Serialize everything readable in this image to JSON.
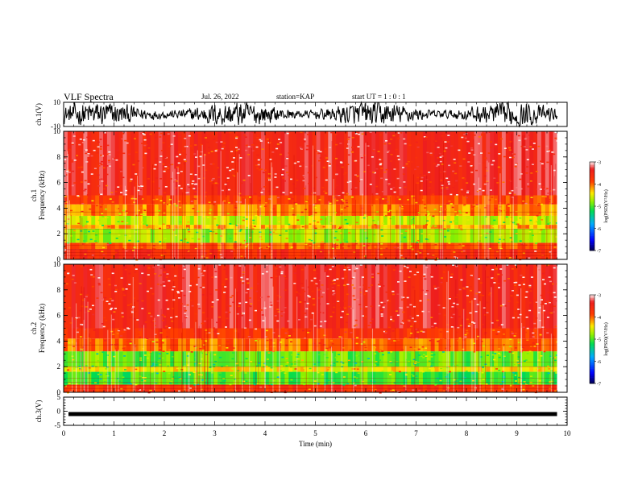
{
  "header": {
    "title": "VLF Spectra",
    "date": "Jul. 26, 2022",
    "station": "station=KAP",
    "start": "start  UT =   1 : 0  : 1"
  },
  "chart_data": [
    {
      "type": "line",
      "name": "ch1-waveform",
      "ylabel": "ch.1(V)",
      "ylim": [
        -10,
        10
      ],
      "yticks": [
        "10",
        "-10"
      ],
      "xlim": [
        0,
        10
      ],
      "description_series": "noisy waveform roughly -10..10 V over 0-9.8 min"
    },
    {
      "type": "heatmap",
      "name": "ch1-spectrogram",
      "ylabel": "ch.1\nFrequency (kHz)",
      "ylabel_line1": "ch.1",
      "ylabel_line2": "Frequency (kHz)",
      "ylim": [
        0,
        10
      ],
      "yticks": [
        "0",
        "2",
        "4",
        "6",
        "8",
        "10"
      ],
      "xlim": [
        0,
        10
      ],
      "data_end_min": 9.8,
      "colorbar": {
        "label": "log(PSD)(V²/Hz)",
        "ticks": [
          "-3",
          "-4",
          "-5",
          "-6",
          "-7"
        ],
        "range": [
          -7,
          -3
        ]
      },
      "bands": [
        {
          "from_khz": 0.0,
          "to_khz": 0.8,
          "level": -3.6
        },
        {
          "from_khz": 0.8,
          "to_khz": 1.3,
          "level": -3.9
        },
        {
          "from_khz": 1.3,
          "to_khz": 2.4,
          "level": -4.7
        },
        {
          "from_khz": 2.4,
          "to_khz": 2.7,
          "level": -4.2
        },
        {
          "from_khz": 2.7,
          "to_khz": 3.4,
          "level": -4.6
        },
        {
          "from_khz": 3.4,
          "to_khz": 4.3,
          "level": -4.1
        },
        {
          "from_khz": 4.3,
          "to_khz": 5.0,
          "level": -3.8
        },
        {
          "from_khz": 5.0,
          "to_khz": 10.0,
          "level": -3.4
        }
      ]
    },
    {
      "type": "heatmap",
      "name": "ch2-spectrogram",
      "ylabel": "ch.2\nFrequency (kHz)",
      "ylabel_line1": "ch.2",
      "ylabel_line2": "Frequency (kHz)",
      "ylim": [
        0,
        10
      ],
      "yticks": [
        "0",
        "2",
        "4",
        "6",
        "8",
        "10"
      ],
      "xlim": [
        0,
        10
      ],
      "data_end_min": 9.8,
      "colorbar": {
        "label": "log(PSD)(V²/Hz)",
        "ticks": [
          "-3",
          "-4",
          "-5",
          "-6",
          "-7"
        ],
        "range": [
          -7,
          -3
        ]
      },
      "bands": [
        {
          "from_khz": 0.0,
          "to_khz": 0.6,
          "level": -3.7
        },
        {
          "from_khz": 0.6,
          "to_khz": 1.6,
          "level": -5.0
        },
        {
          "from_khz": 1.6,
          "to_khz": 2.0,
          "level": -4.4
        },
        {
          "from_khz": 2.0,
          "to_khz": 3.2,
          "level": -4.9
        },
        {
          "from_khz": 3.2,
          "to_khz": 4.2,
          "level": -4.0
        },
        {
          "from_khz": 4.2,
          "to_khz": 5.0,
          "level": -3.7
        },
        {
          "from_khz": 5.0,
          "to_khz": 10.0,
          "level": -3.4
        }
      ]
    },
    {
      "type": "line",
      "name": "ch3-waveform",
      "ylabel": "ch.3(V)",
      "ylim": [
        -5,
        5
      ],
      "yticks": [
        "5",
        "0",
        "-5"
      ],
      "xlim": [
        0,
        10
      ],
      "level_v": -1,
      "xlabel": "Time (min)",
      "xticks": [
        "0",
        "1",
        "2",
        "3",
        "4",
        "5",
        "6",
        "7",
        "8",
        "9",
        "10"
      ]
    }
  ]
}
